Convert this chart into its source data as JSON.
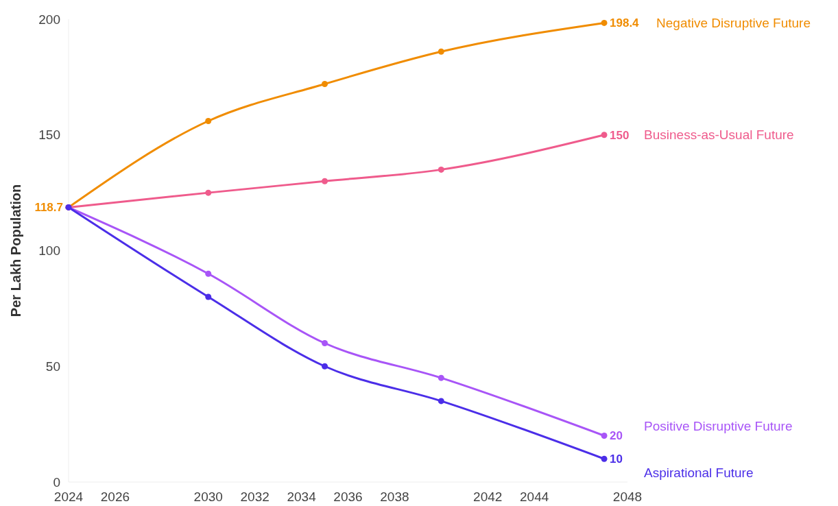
{
  "chart_data": {
    "type": "line",
    "ylabel": "Per Lakh Population",
    "x": [
      2024,
      2030,
      2035,
      2040,
      2047
    ],
    "xlim": [
      2024,
      2048
    ],
    "xticks": [
      2024,
      2026,
      2030,
      2032,
      2034,
      2036,
      2038,
      2042,
      2044,
      2048
    ],
    "ylim": [
      0,
      200
    ],
    "yticks": [
      0,
      50,
      100,
      150,
      200
    ],
    "grid": false,
    "marker": "circle",
    "line_style": "solid",
    "series": [
      {
        "name": "Negative Disruptive Future",
        "color": "#f08c00",
        "values": [
          118.7,
          156,
          172,
          186,
          198.4
        ],
        "value_labels": [
          "118.7",
          null,
          null,
          null,
          "198.4"
        ]
      },
      {
        "name": "Business-as-Usual Future",
        "color": "#ef5b8c",
        "values": [
          118.7,
          125,
          130,
          135,
          150
        ],
        "value_labels": [
          null,
          null,
          null,
          null,
          "150"
        ]
      },
      {
        "name": "Positive Disruptive Future",
        "color": "#a855f7",
        "values": [
          118.7,
          90,
          60,
          45,
          20
        ],
        "value_labels": [
          null,
          null,
          null,
          null,
          "20"
        ]
      },
      {
        "name": "Aspirational Future",
        "color": "#4b2ee8",
        "values": [
          118.7,
          80,
          50,
          35,
          10
        ],
        "value_labels": [
          null,
          null,
          null,
          null,
          "10"
        ]
      }
    ]
  }
}
